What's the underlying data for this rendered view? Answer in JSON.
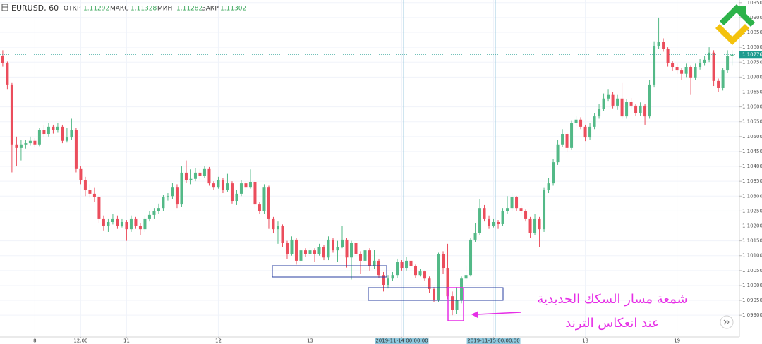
{
  "chart_data": {
    "type": "candlestick",
    "header": {
      "symbol": "EURUSD, 60",
      "open_label": "ОТКР",
      "open": 1.11292,
      "high_label": "МАКС",
      "high": 1.11328,
      "low_label": "МИН",
      "low": 1.11282,
      "close_label": "ЗАКР",
      "close": 1.11302
    },
    "annotations": [
      "شمعة مسار السكك الحديدية",
      "عند انعكاس الترند"
    ],
    "up_color": "#53b987",
    "down_color": "#eb4d5c",
    "grid": true,
    "last_price": {
      "value": 1.10776,
      "label": "1.10776",
      "color": "#1e9c8f"
    },
    "xlim": [
      -0.6,
      160.6
    ],
    "xticks": [
      {
        "value": 7,
        "label": "8"
      },
      {
        "value": 17,
        "label": "12:00"
      },
      {
        "value": 27,
        "label": "11"
      },
      {
        "value": 47,
        "label": "12"
      },
      {
        "value": 67,
        "label": "13"
      },
      {
        "value": 87,
        "label": "2019-11-14 00:00:00",
        "highlight": true
      },
      {
        "value": 107,
        "label": "2019-11-15 00:00:00",
        "highlight": true
      },
      {
        "value": 127,
        "label": "18"
      },
      {
        "value": 147,
        "label": "19"
      }
    ],
    "ylim": [
      1.09827,
      1.10959
    ],
    "yticks": [
      {
        "value": 1.099,
        "label": "1.09900"
      },
      {
        "value": 1.0995,
        "label": "1.09950"
      },
      {
        "value": 1.1,
        "label": "1.10000"
      },
      {
        "value": 1.1005,
        "label": "1.10050"
      },
      {
        "value": 1.101,
        "label": "1.10100"
      },
      {
        "value": 1.1015,
        "label": "1.10150"
      },
      {
        "value": 1.102,
        "label": "1.10200"
      },
      {
        "value": 1.1025,
        "label": "1.10250"
      },
      {
        "value": 1.103,
        "label": "1.10300"
      },
      {
        "value": 1.1035,
        "label": "1.10350"
      },
      {
        "value": 1.104,
        "label": "1.10400"
      },
      {
        "value": 1.1045,
        "label": "1.10450"
      },
      {
        "value": 1.105,
        "label": "1.10500"
      },
      {
        "value": 1.1055,
        "label": "1.10550"
      },
      {
        "value": 1.106,
        "label": "1.10600"
      },
      {
        "value": 1.1065,
        "label": "1.10650"
      },
      {
        "value": 1.107,
        "label": "1.10700"
      },
      {
        "value": 1.1075,
        "label": "1.10750"
      },
      {
        "value": 1.108,
        "label": "1.10800"
      },
      {
        "value": 1.1085,
        "label": "1.10850"
      },
      {
        "value": 1.109,
        "label": "1.10900"
      },
      {
        "value": 1.1095,
        "label": "1.10950"
      }
    ],
    "candles": [
      [
        1.1077,
        1.1079,
        1.10735,
        1.10746
      ],
      [
        1.10746,
        1.10752,
        1.1066,
        1.10675
      ],
      [
        1.10675,
        1.1068,
        1.1038,
        1.10474
      ],
      [
        1.10474,
        1.105,
        1.104,
        1.10462
      ],
      [
        1.10462,
        1.1049,
        1.1042,
        1.10474
      ],
      [
        1.10474,
        1.1049,
        1.1046,
        1.10478
      ],
      [
        1.10478,
        1.105,
        1.1047,
        1.10486
      ],
      [
        1.10486,
        1.10495,
        1.10465,
        1.10474
      ],
      [
        1.10474,
        1.1053,
        1.10468,
        1.10521
      ],
      [
        1.10521,
        1.1054,
        1.105,
        1.10509
      ],
      [
        1.10509,
        1.10545,
        1.105,
        1.10533
      ],
      [
        1.10533,
        1.1054,
        1.1051,
        1.10521
      ],
      [
        1.10521,
        1.10545,
        1.10515,
        1.10533
      ],
      [
        1.10533,
        1.1054,
        1.10478,
        1.10486
      ],
      [
        1.10486,
        1.1053,
        1.1048,
        1.10497
      ],
      [
        1.10497,
        1.1056,
        1.1049,
        1.10521
      ],
      [
        1.10521,
        1.1053,
        1.1038,
        1.10391
      ],
      [
        1.10391,
        1.104,
        1.1034,
        1.10355
      ],
      [
        1.10355,
        1.10365,
        1.103,
        1.1032
      ],
      [
        1.1032,
        1.1034,
        1.10295,
        1.10308
      ],
      [
        1.10308,
        1.1033,
        1.1028,
        1.10296
      ],
      [
        1.10296,
        1.103,
        1.1021,
        1.10225
      ],
      [
        1.10225,
        1.10235,
        1.10185,
        1.10201
      ],
      [
        1.10201,
        1.10225,
        1.1018,
        1.10213
      ],
      [
        1.10213,
        1.1024,
        1.10205,
        1.10225
      ],
      [
        1.10225,
        1.10235,
        1.1019,
        1.10201
      ],
      [
        1.10201,
        1.10225,
        1.10195,
        1.10213
      ],
      [
        1.10213,
        1.1022,
        1.1015,
        1.10189
      ],
      [
        1.10189,
        1.10235,
        1.1018,
        1.10225
      ],
      [
        1.10225,
        1.1023,
        1.1019,
        1.10201
      ],
      [
        1.10201,
        1.1021,
        1.1017,
        1.10189
      ],
      [
        1.10189,
        1.10235,
        1.1018,
        1.10225
      ],
      [
        1.10225,
        1.1025,
        1.10215,
        1.10237
      ],
      [
        1.10237,
        1.1026,
        1.10225,
        1.10249
      ],
      [
        1.10249,
        1.10275,
        1.1024,
        1.1026
      ],
      [
        1.1026,
        1.10305,
        1.1025,
        1.10296
      ],
      [
        1.10296,
        1.1031,
        1.10285,
        1.103
      ],
      [
        1.103,
        1.10345,
        1.1029,
        1.10331
      ],
      [
        1.10331,
        1.1034,
        1.1026,
        1.10272
      ],
      [
        1.10272,
        1.104,
        1.10265,
        1.10379
      ],
      [
        1.10379,
        1.1042,
        1.10345,
        1.10355
      ],
      [
        1.10355,
        1.1039,
        1.1034,
        1.10358
      ],
      [
        1.10358,
        1.10395,
        1.1035,
        1.10379
      ],
      [
        1.10379,
        1.1039,
        1.10355,
        1.10367
      ],
      [
        1.10367,
        1.104,
        1.1036,
        1.10391
      ],
      [
        1.10391,
        1.10398,
        1.10335,
        1.10343
      ],
      [
        1.10343,
        1.1035,
        1.1032,
        1.10331
      ],
      [
        1.10331,
        1.10365,
        1.10325,
        1.10355
      ],
      [
        1.10355,
        1.1036,
        1.1031,
        1.1032
      ],
      [
        1.1032,
        1.10375,
        1.10315,
        1.10343
      ],
      [
        1.10343,
        1.1035,
        1.10275,
        1.10284
      ],
      [
        1.10284,
        1.1032,
        1.1027,
        1.10308
      ],
      [
        1.10308,
        1.10355,
        1.103,
        1.10343
      ],
      [
        1.10343,
        1.1035,
        1.1032,
        1.10331
      ],
      [
        1.10331,
        1.1039,
        1.10325,
        1.10348
      ],
      [
        1.10348,
        1.10355,
        1.1026,
        1.10272
      ],
      [
        1.10272,
        1.1028,
        1.1024,
        1.10249
      ],
      [
        1.10249,
        1.1034,
        1.1024,
        1.10331
      ],
      [
        1.10331,
        1.10335,
        1.1019,
        1.10225
      ],
      [
        1.10225,
        1.1023,
        1.10175,
        1.10189
      ],
      [
        1.10189,
        1.10215,
        1.1014,
        1.10201
      ],
      [
        1.10201,
        1.10205,
        1.1013,
        1.10142
      ],
      [
        1.10142,
        1.1015,
        1.1009,
        1.10106
      ],
      [
        1.10106,
        1.10165,
        1.101,
        1.10154
      ],
      [
        1.10154,
        1.1016,
        1.1007,
        1.10083
      ],
      [
        1.10083,
        1.10125,
        1.1006,
        1.10118
      ],
      [
        1.10118,
        1.10125,
        1.10095,
        1.10106
      ],
      [
        1.10106,
        1.1013,
        1.101,
        1.10118
      ],
      [
        1.10118,
        1.10125,
        1.1008,
        1.10106
      ],
      [
        1.10106,
        1.1014,
        1.101,
        1.1013
      ],
      [
        1.1013,
        1.10135,
        1.10085,
        1.10094
      ],
      [
        1.10094,
        1.10165,
        1.10085,
        1.10154
      ],
      [
        1.10154,
        1.1016,
        1.1011,
        1.10118
      ],
      [
        1.10118,
        1.1015,
        1.1008,
        1.1013
      ],
      [
        1.1013,
        1.102,
        1.10125,
        1.10154
      ],
      [
        1.10154,
        1.1016,
        1.1006,
        1.10094
      ],
      [
        1.10094,
        1.1015,
        1.1002,
        1.10142
      ],
      [
        1.10142,
        1.1019,
        1.10095,
        1.10106
      ],
      [
        1.10106,
        1.10115,
        1.1004,
        1.10083
      ],
      [
        1.10083,
        1.1013,
        1.10075,
        1.10118
      ],
      [
        1.10118,
        1.10125,
        1.1005,
        1.10064
      ],
      [
        1.10064,
        1.1012,
        1.10055,
        1.10083
      ],
      [
        1.10083,
        1.1009,
        1.10025,
        1.10035
      ],
      [
        1.10035,
        1.10045,
        1.0998,
        1.1
      ],
      [
        1.1,
        1.10035,
        1.0999,
        1.10023
      ],
      [
        1.10023,
        1.10045,
        1.10015,
        1.10035
      ],
      [
        1.10035,
        1.1009,
        1.10025,
        1.10078
      ],
      [
        1.10078,
        1.10085,
        1.1005,
        1.10059
      ],
      [
        1.10059,
        1.10095,
        1.1005,
        1.10083
      ],
      [
        1.10083,
        1.101,
        1.10055,
        1.10064
      ],
      [
        1.10064,
        1.1007,
        1.10025,
        1.10035
      ],
      [
        1.10035,
        1.10055,
        1.1003,
        1.10047
      ],
      [
        1.10047,
        1.1005,
        1.10015,
        1.10023
      ],
      [
        1.10023,
        1.1003,
        1.09975,
        1.09988
      ],
      [
        1.09988,
        1.09995,
        1.09945,
        1.09952
      ],
      [
        1.09952,
        1.1011,
        1.09945,
        1.10106
      ],
      [
        1.10106,
        1.10115,
        1.1004,
        1.10059
      ],
      [
        1.10059,
        1.1014,
        1.09955,
        1.09964
      ],
      [
        1.09964,
        1.0998,
        1.099,
        1.09917
      ],
      [
        1.09917,
        1.09995,
        1.09905,
        1.09952
      ],
      [
        1.09952,
        1.1003,
        1.0994,
        1.10023
      ],
      [
        1.10023,
        1.10065,
        1.10015,
        1.10035
      ],
      [
        1.10035,
        1.1016,
        1.1003,
        1.10154
      ],
      [
        1.10154,
        1.1021,
        1.10145,
        1.10177
      ],
      [
        1.10177,
        1.1029,
        1.1017,
        1.1026
      ],
      [
        1.1026,
        1.1027,
        1.10215,
        1.10225
      ],
      [
        1.10225,
        1.10235,
        1.1019,
        1.10201
      ],
      [
        1.10201,
        1.10225,
        1.10195,
        1.10213
      ],
      [
        1.10213,
        1.1022,
        1.1019,
        1.10206
      ],
      [
        1.10206,
        1.1026,
        1.102,
        1.10249
      ],
      [
        1.10249,
        1.103,
        1.1024,
        1.1026
      ],
      [
        1.1026,
        1.1031,
        1.1025,
        1.10296
      ],
      [
        1.10296,
        1.103,
        1.1025,
        1.1026
      ],
      [
        1.1026,
        1.1027,
        1.1024,
        1.10249
      ],
      [
        1.10249,
        1.10255,
        1.10215,
        1.10225
      ],
      [
        1.10225,
        1.1023,
        1.1016,
        1.10177
      ],
      [
        1.10177,
        1.1024,
        1.1017,
        1.10225
      ],
      [
        1.10225,
        1.1023,
        1.1013,
        1.10189
      ],
      [
        1.10189,
        1.1033,
        1.1018,
        1.1032
      ],
      [
        1.1032,
        1.1036,
        1.1031,
        1.10343
      ],
      [
        1.10343,
        1.10425,
        1.10335,
        1.10414
      ],
      [
        1.10414,
        1.1049,
        1.10405,
        1.10474
      ],
      [
        1.10474,
        1.10525,
        1.10465,
        1.10509
      ],
      [
        1.10509,
        1.10515,
        1.1045,
        1.10462
      ],
      [
        1.10462,
        1.10555,
        1.10455,
        1.10545
      ],
      [
        1.10545,
        1.1057,
        1.10535,
        1.10557
      ],
      [
        1.10557,
        1.10565,
        1.10525,
        1.10533
      ],
      [
        1.10533,
        1.1054,
        1.10485,
        1.10497
      ],
      [
        1.10497,
        1.10545,
        1.1049,
        1.10533
      ],
      [
        1.10533,
        1.1058,
        1.10525,
        1.10568
      ],
      [
        1.10568,
        1.1061,
        1.1056,
        1.10592
      ],
      [
        1.10592,
        1.10645,
        1.10585,
        1.10628
      ],
      [
        1.10628,
        1.1066,
        1.1062,
        1.1064
      ],
      [
        1.1064,
        1.1065,
        1.10595,
        1.10604
      ],
      [
        1.10604,
        1.1064,
        1.1059,
        1.10628
      ],
      [
        1.10628,
        1.1068,
        1.1056,
        1.10568
      ],
      [
        1.10568,
        1.10625,
        1.1056,
        1.10616
      ],
      [
        1.10616,
        1.1063,
        1.10595,
        1.10604
      ],
      [
        1.10604,
        1.1061,
        1.1057,
        1.1058
      ],
      [
        1.1058,
        1.10615,
        1.1057,
        1.10604
      ],
      [
        1.10604,
        1.1061,
        1.1054,
        1.10568
      ],
      [
        1.10568,
        1.1069,
        1.1056,
        1.10675
      ],
      [
        1.10675,
        1.1082,
        1.10665,
        1.10805
      ],
      [
        1.10805,
        1.109,
        1.10795,
        1.10817
      ],
      [
        1.10817,
        1.1083,
        1.10785,
        1.10794
      ],
      [
        1.10794,
        1.108,
        1.10735,
        1.10746
      ],
      [
        1.10746,
        1.10755,
        1.1072,
        1.10734
      ],
      [
        1.10734,
        1.10745,
        1.1071,
        1.10722
      ],
      [
        1.10722,
        1.1073,
        1.1069,
        1.10711
      ],
      [
        1.10711,
        1.10745,
        1.107,
        1.10734
      ],
      [
        1.10734,
        1.1074,
        1.1064,
        1.10699
      ],
      [
        1.10699,
        1.10745,
        1.1069,
        1.10734
      ],
      [
        1.10734,
        1.1076,
        1.10725,
        1.10746
      ],
      [
        1.10746,
        1.1077,
        1.1074,
        1.10758
      ],
      [
        1.10758,
        1.108,
        1.1075,
        1.10782
      ],
      [
        1.10782,
        1.1079,
        1.1067,
        1.10687
      ],
      [
        1.10687,
        1.10695,
        1.1065,
        1.10663
      ],
      [
        1.10663,
        1.1073,
        1.10655,
        1.10722
      ],
      [
        1.10722,
        1.1079,
        1.10715,
        1.1077
      ],
      [
        1.1077,
        1.1079,
        1.1074,
        1.10775
      ]
    ]
  }
}
